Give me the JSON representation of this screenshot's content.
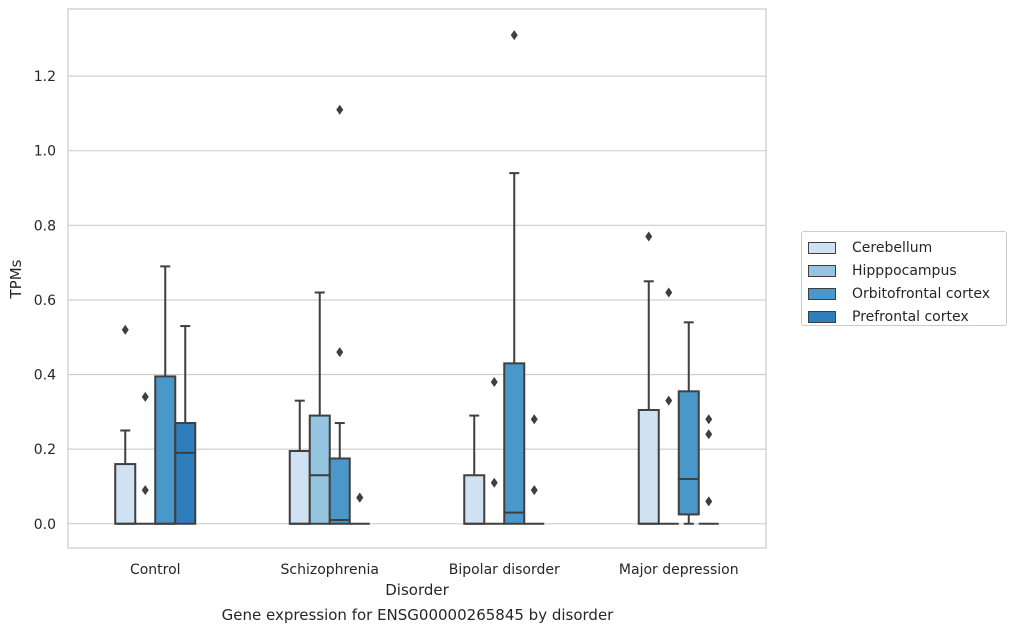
{
  "chart_data": {
    "type": "box",
    "title": "Gene expression for ENSG00000265845 by disorder",
    "xlabel": "Disorder",
    "ylabel": "TPMs",
    "ylim": [
      -0.065,
      1.38
    ],
    "yticks": [
      "0.0",
      "0.2",
      "0.4",
      "0.6",
      "0.8",
      "1.0",
      "1.2"
    ],
    "grid": "horizontal",
    "legend_placement": "center-right outside",
    "categories": [
      "Control",
      "Schizophrenia",
      "Bipolar disorder",
      "Major depression"
    ],
    "series": [
      {
        "name": "Cerebellum",
        "color": "#d0e1f2",
        "boxes": [
          {
            "q1": 0,
            "median": 0,
            "q3": 0.16,
            "whislo": 0,
            "whishi": 0.25,
            "fliers": [
              0.52
            ]
          },
          {
            "q1": 0,
            "median": 0,
            "q3": 0.195,
            "whislo": 0,
            "whishi": 0.33,
            "fliers": []
          },
          {
            "q1": 0,
            "median": 0,
            "q3": 0.13,
            "whislo": 0,
            "whishi": 0.29,
            "fliers": []
          },
          {
            "q1": 0,
            "median": 0,
            "q3": 0.305,
            "whislo": 0,
            "whishi": 0.65,
            "fliers": [
              0.77
            ]
          }
        ]
      },
      {
        "name": "Hipppocampus",
        "color": "#94c4df",
        "boxes": [
          {
            "q1": 0,
            "median": 0,
            "q3": 0,
            "whislo": 0,
            "whishi": 0,
            "fliers": [
              0.09,
              0.34
            ]
          },
          {
            "q1": 0,
            "median": 0.13,
            "q3": 0.29,
            "whislo": 0,
            "whishi": 0.62,
            "fliers": []
          },
          {
            "q1": 0,
            "median": 0,
            "q3": 0,
            "whislo": 0,
            "whishi": 0,
            "fliers": [
              0.11,
              0.38
            ]
          },
          {
            "q1": 0,
            "median": 0,
            "q3": 0,
            "whislo": 0,
            "whishi": 0,
            "fliers": [
              0.33,
              0.62
            ]
          }
        ]
      },
      {
        "name": "Orbitofrontal cortex",
        "color": "#4a98c9",
        "boxes": [
          {
            "q1": 0,
            "median": 0,
            "q3": 0.395,
            "whislo": 0,
            "whishi": 0.69,
            "fliers": []
          },
          {
            "q1": 0,
            "median": 0.01,
            "q3": 0.175,
            "whislo": 0,
            "whishi": 0.27,
            "fliers": [
              0.46,
              1.11
            ]
          },
          {
            "q1": 0,
            "median": 0.03,
            "q3": 0.43,
            "whislo": 0,
            "whishi": 0.94,
            "fliers": [
              1.31
            ]
          },
          {
            "q1": 0.025,
            "median": 0.12,
            "q3": 0.355,
            "whislo": 0,
            "whishi": 0.54,
            "fliers": []
          }
        ]
      },
      {
        "name": "Prefrontal cortex",
        "color": "#2e7ebc",
        "boxes": [
          {
            "q1": 0,
            "median": 0.19,
            "q3": 0.27,
            "whislo": 0,
            "whishi": 0.53,
            "fliers": []
          },
          {
            "q1": 0,
            "median": 0,
            "q3": 0,
            "whislo": 0,
            "whishi": 0,
            "fliers": [
              0.07,
              0.07
            ]
          },
          {
            "q1": 0,
            "median": 0,
            "q3": 0,
            "whislo": 0,
            "whishi": 0,
            "fliers": [
              0.09,
              0.28
            ]
          },
          {
            "q1": 0,
            "median": 0,
            "q3": 0,
            "whislo": 0,
            "whishi": 0,
            "fliers": [
              0.06,
              0.24,
              0.28
            ]
          }
        ]
      }
    ]
  }
}
